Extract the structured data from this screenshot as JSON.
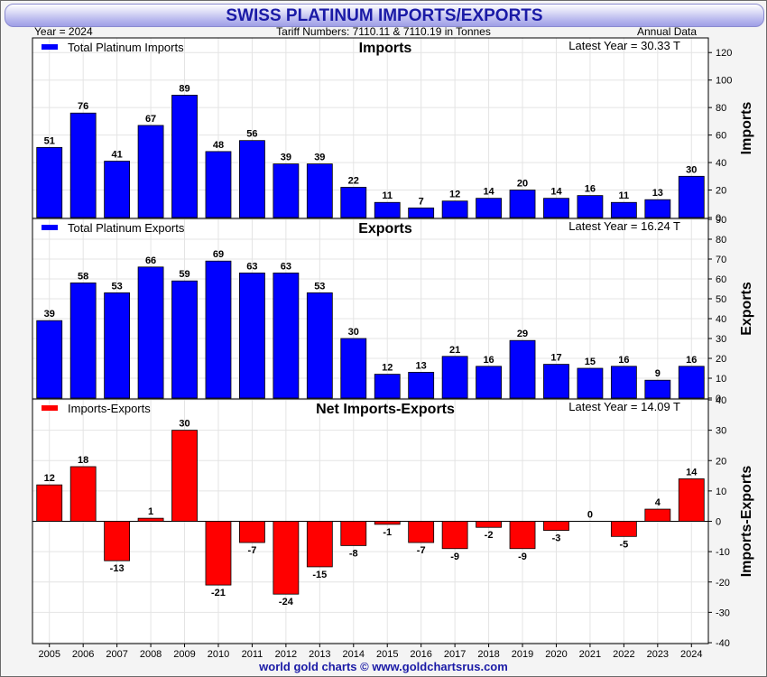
{
  "title": "SWISS PLATINUM IMPORTS/EXPORTS",
  "header": {
    "year": "Year = 2024",
    "tariff": "Tariff Numbers: 7110.11 & 7110.19 in Tonnes",
    "frequency": "Annual Data"
  },
  "footer": "world gold charts © www.goldchartsrus.com",
  "colors": {
    "imports": "#0000ff",
    "exports": "#0000ff",
    "net": "#ff0000"
  },
  "chart_data": [
    {
      "type": "bar",
      "title": "Imports",
      "ylabel": "Imports",
      "legend": "Total Platinum Imports",
      "latest": "Latest Year = 30.33 T",
      "categories": [
        "2005",
        "2006",
        "2007",
        "2008",
        "2009",
        "2010",
        "2011",
        "2012",
        "2013",
        "2014",
        "2015",
        "2016",
        "2017",
        "2018",
        "2019",
        "2020",
        "2021",
        "2022",
        "2023",
        "2024"
      ],
      "values": [
        51,
        76,
        41,
        67,
        89,
        48,
        56,
        39,
        39,
        22,
        11,
        7,
        12,
        14,
        20,
        14,
        16,
        11,
        13,
        30
      ],
      "ylim": [
        0,
        130
      ],
      "yticks": [
        0,
        20,
        40,
        60,
        80,
        100,
        120
      ]
    },
    {
      "type": "bar",
      "title": "Exports",
      "ylabel": "Exports",
      "legend": "Total Platinum Exports",
      "latest": "Latest Year = 16.24 T",
      "categories": [
        "2005",
        "2006",
        "2007",
        "2008",
        "2009",
        "2010",
        "2011",
        "2012",
        "2013",
        "2014",
        "2015",
        "2016",
        "2017",
        "2018",
        "2019",
        "2020",
        "2021",
        "2022",
        "2023",
        "2024"
      ],
      "values": [
        39,
        58,
        53,
        66,
        59,
        69,
        63,
        63,
        53,
        30,
        12,
        13,
        21,
        16,
        29,
        17,
        15,
        16,
        9,
        16
      ],
      "ylim": [
        0,
        90
      ],
      "yticks": [
        0,
        10,
        20,
        30,
        40,
        50,
        60,
        70,
        80,
        90
      ]
    },
    {
      "type": "bar",
      "title": "Net Imports-Exports",
      "ylabel": "Imports-Exports",
      "legend": "Imports-Exports",
      "latest": "Latest Year = 14.09 T",
      "categories": [
        "2005",
        "2006",
        "2007",
        "2008",
        "2009",
        "2010",
        "2011",
        "2012",
        "2013",
        "2014",
        "2015",
        "2016",
        "2017",
        "2018",
        "2019",
        "2020",
        "2021",
        "2022",
        "2023",
        "2024"
      ],
      "values": [
        12,
        18,
        -13,
        1,
        30,
        -21,
        -7,
        -24,
        -15,
        -8,
        -1,
        -7,
        -9,
        -2,
        -9,
        -3,
        0,
        -5,
        4,
        14
      ],
      "ylim": [
        -40,
        40
      ],
      "yticks": [
        -40,
        -30,
        -20,
        -10,
        0,
        10,
        20,
        30,
        40
      ]
    }
  ]
}
